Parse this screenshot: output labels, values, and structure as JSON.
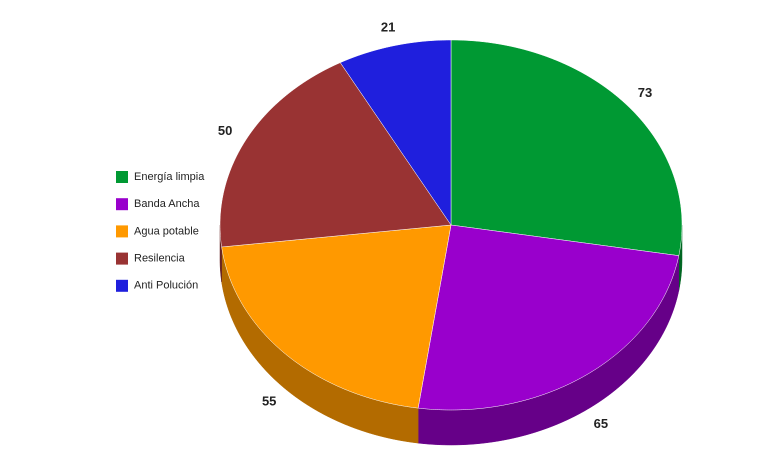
{
  "chart_data": {
    "type": "pie",
    "categories": [
      "Energía limpia",
      "Banda Ancha",
      "Agua potable",
      "Resilencia",
      "Anti Polución"
    ],
    "values": [
      73,
      65,
      55,
      50,
      21
    ],
    "colors": [
      "#009933",
      "#9900cc",
      "#ff9900",
      "#993333",
      "#1f1fdd"
    ],
    "side_colors": [
      "#006622",
      "#660088",
      "#b36b00",
      "#662222",
      "#14148f"
    ],
    "legend": "left"
  }
}
